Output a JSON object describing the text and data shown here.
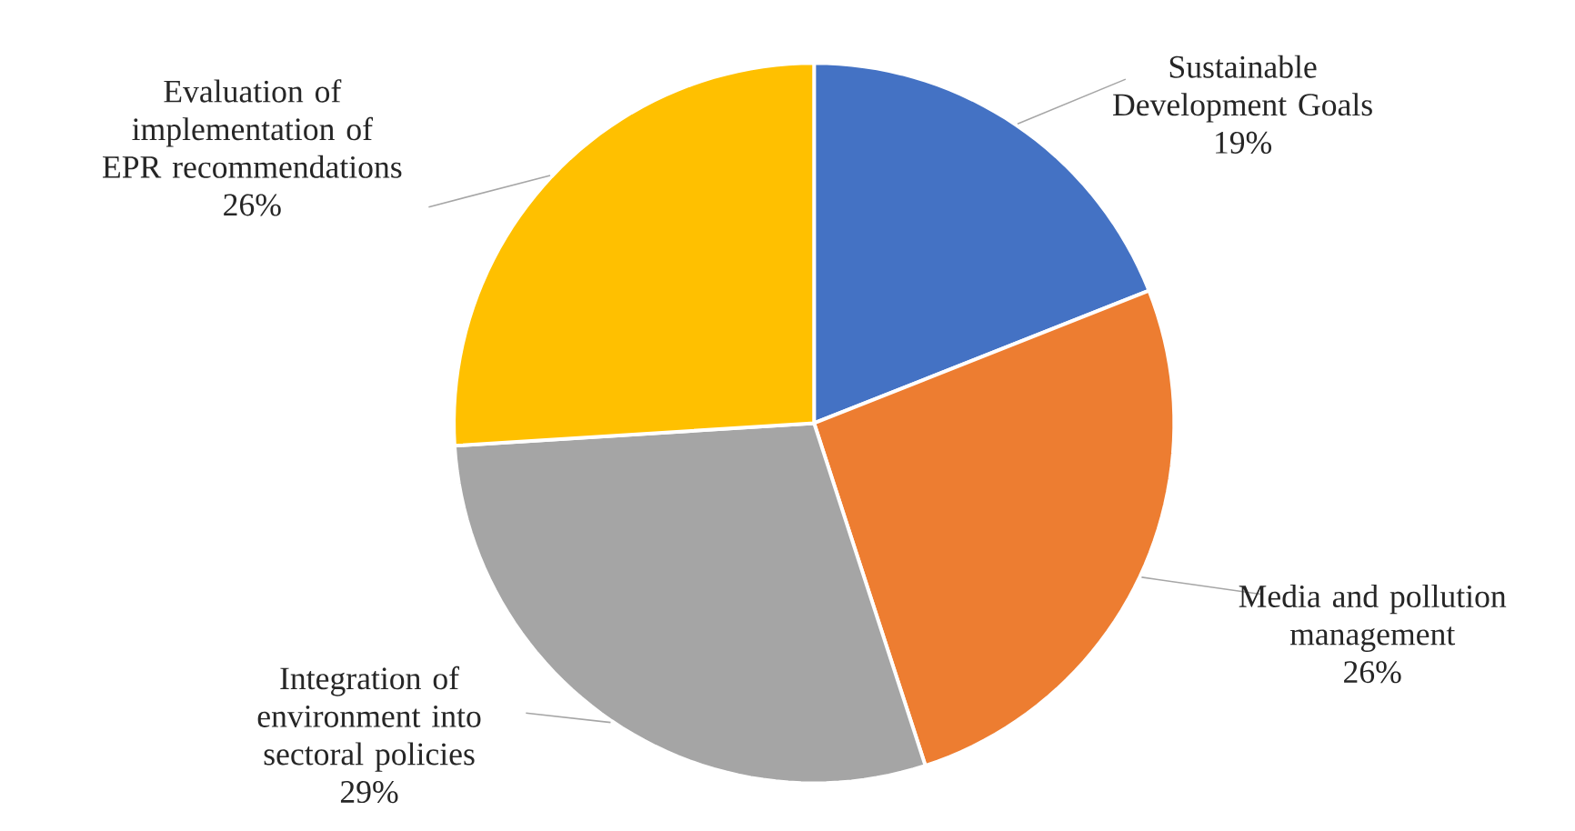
{
  "chart_data": {
    "type": "pie",
    "categories": [
      "Sustainable Development Goals",
      "Media and pollution management",
      "Integration of environment into sectoral policies",
      "Evaluation of implementation of EPR recommendations"
    ],
    "values": [
      19,
      26,
      29,
      26
    ],
    "value_labels": [
      "19%",
      "26%",
      "29%",
      "26%"
    ],
    "colors": [
      "#4472c4",
      "#ed7d31",
      "#a5a5a5",
      "#ffc000"
    ]
  }
}
